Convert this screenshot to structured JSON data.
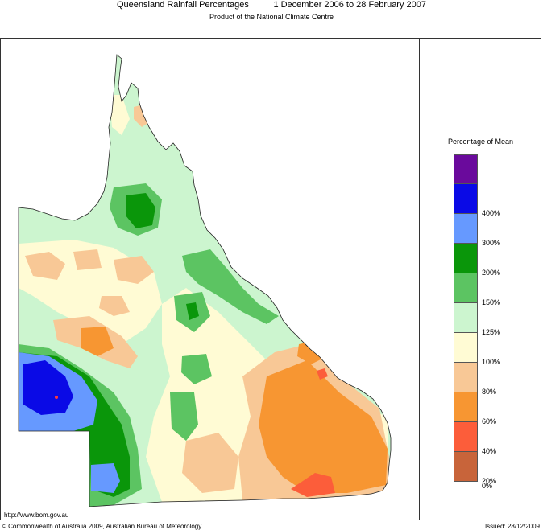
{
  "header": {
    "title": "Queensland Rainfall Percentages",
    "period": "1 December 2006 to 28 February 2007",
    "subtitle": "Product of the National Climate Centre"
  },
  "legend": {
    "title": "Percentage of Mean",
    "bins": [
      {
        "color": "#6a0a9c",
        "label": ""
      },
      {
        "color": "#0a0ae6",
        "label": "400%"
      },
      {
        "color": "#6699ff",
        "label": "300%"
      },
      {
        "color": "#0a960a",
        "label": "200%"
      },
      {
        "color": "#5cc462",
        "label": "150%"
      },
      {
        "color": "#ccf5cf",
        "label": "125%"
      },
      {
        "color": "#fffbd4",
        "label": "100%"
      },
      {
        "color": "#f8c896",
        "label": "80%"
      },
      {
        "color": "#f79632",
        "label": "60%"
      },
      {
        "color": "#fc5d3a",
        "label": "40%"
      },
      {
        "color": "#c8643a",
        "label": "20%"
      }
    ],
    "bottom_label": "0%"
  },
  "footer": {
    "url": "http://www.bom.gov.au",
    "copyright": "© Commonwealth of Australia 2009, Australian Bureau of Meteorology",
    "issued": "Issued: 28/12/2009"
  }
}
